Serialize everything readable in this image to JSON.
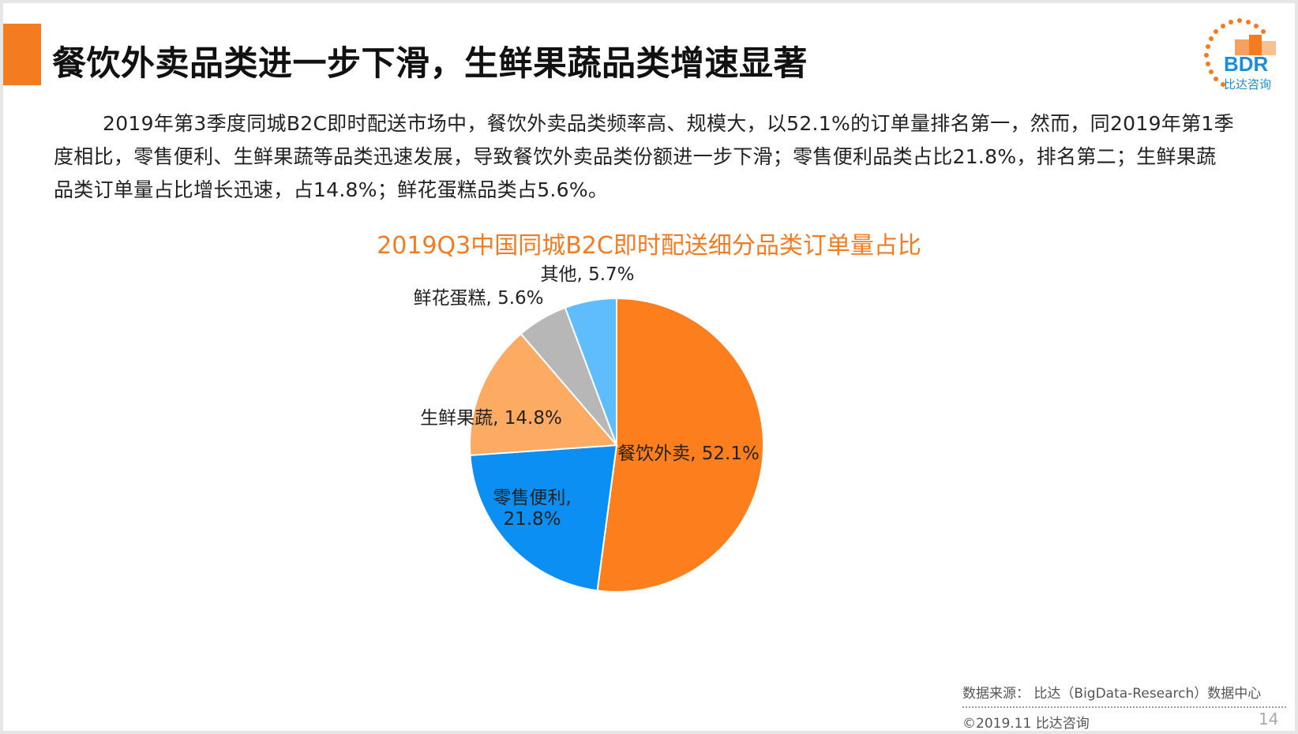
{
  "title": "餐饮外卖品类进一步下滑，生鲜果蔬品类增速显著",
  "paragraph": "2019年第3季度同城B2C即时配送市场中，餐饮外卖品类频率高、规模大，以52.1%的订单量排名第一，然而，同2019年第1季度相比，零售便利、生鲜果蔬等品类迅速发展，导致餐饮外卖品类份额进一步下滑；零售便利品类占比21.8%，排名第二；生鲜果蔬品类订单量占比增长迅速，占14.8%；鲜花蛋糕品类占5.6%。",
  "logo": {
    "text": "BDR",
    "subtext": "比达咨询",
    "icon": "bdr-logo-icon",
    "accent": "#f47b20",
    "blue": "#1a8fd8"
  },
  "chart_data": {
    "type": "pie",
    "title": "2019Q3中国同城B2C即时配送细分品类订单量占比",
    "slices": [
      {
        "name": "餐饮外卖",
        "value": 52.1,
        "label": "餐饮外卖, 52.1%",
        "color": "#fd7e1d"
      },
      {
        "name": "零售便利",
        "value": 21.8,
        "label_lines": [
          "零售便利,",
          "21.8%"
        ],
        "color": "#0b8ff3"
      },
      {
        "name": "生鲜果蔬",
        "value": 14.8,
        "label": "生鲜果蔬, 14.8%",
        "color": "#fdab63"
      },
      {
        "name": "鲜花蛋糕",
        "value": 5.6,
        "label": "鲜花蛋糕, 5.6%",
        "color": "#b7b7b7"
      },
      {
        "name": "其他",
        "value": 5.7,
        "label": "其他, 5.7%",
        "color": "#5fbdfd"
      }
    ]
  },
  "footer": {
    "source": "数据来源： 比达（BigData-Research）数据中心",
    "copyright": "©2019.11  比达咨询",
    "page": "14"
  }
}
